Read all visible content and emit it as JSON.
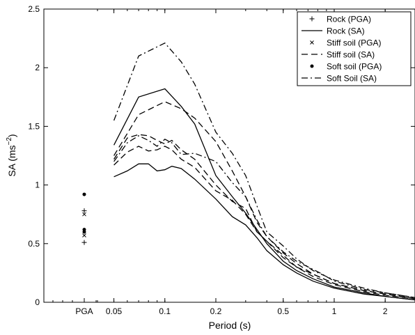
{
  "chart_data": {
    "type": "line",
    "title": "",
    "xlabel": "Period (s)",
    "ylabel_base": "SA (ms",
    "ylabel_exp": "−2",
    "ylabel_close": ")",
    "x_scale": "log",
    "xlim": [
      0.04,
      3
    ],
    "ylim": [
      0,
      2.5
    ],
    "grid": false,
    "legend_position": "top-right",
    "x_ticks": [
      {
        "value": 0.05,
        "label": "0.05"
      },
      {
        "value": 0.1,
        "label": "0.1"
      },
      {
        "value": 0.2,
        "label": "0.2"
      },
      {
        "value": 0.5,
        "label": "0.5"
      },
      {
        "value": 1,
        "label": "1"
      },
      {
        "value": 2,
        "label": "2"
      }
    ],
    "y_ticks": [
      {
        "value": 0,
        "label": "0"
      },
      {
        "value": 0.5,
        "label": "0.5"
      },
      {
        "value": 1,
        "label": "1"
      },
      {
        "value": 1.5,
        "label": "1.5"
      },
      {
        "value": 2,
        "label": "2"
      },
      {
        "value": 2.5,
        "label": "2.5"
      }
    ],
    "pga_label": "PGA",
    "pga_points": [
      {
        "series": "Rock (PGA)",
        "marker": "plus",
        "values": [
          0.51,
          0.78
        ]
      },
      {
        "series": "Stiff soil (PGA)",
        "marker": "x",
        "values": [
          0.57,
          0.75
        ]
      },
      {
        "series": "Soft soil (PGA)",
        "marker": "dot",
        "values": [
          0.6,
          0.62,
          0.92
        ]
      }
    ],
    "series": [
      {
        "name": "Rock (SA)",
        "dash": "",
        "points": [
          [
            0.05,
            1.07
          ],
          [
            0.06,
            1.12
          ],
          [
            0.07,
            1.18
          ],
          [
            0.08,
            1.18
          ],
          [
            0.09,
            1.12
          ],
          [
            0.1,
            1.13
          ],
          [
            0.11,
            1.16
          ],
          [
            0.125,
            1.14
          ],
          [
            0.15,
            1.05
          ],
          [
            0.2,
            0.88
          ],
          [
            0.25,
            0.73
          ],
          [
            0.3,
            0.66
          ],
          [
            0.35,
            0.55
          ],
          [
            0.4,
            0.44
          ],
          [
            0.5,
            0.32
          ],
          [
            0.6,
            0.25
          ],
          [
            0.75,
            0.18
          ],
          [
            1,
            0.12
          ],
          [
            1.5,
            0.07
          ],
          [
            2,
            0.05
          ],
          [
            3,
            0.02
          ]
        ]
      },
      {
        "name": "Rock (SA)",
        "dash": "",
        "points": [
          [
            0.05,
            1.34
          ],
          [
            0.07,
            1.75
          ],
          [
            0.1,
            1.82
          ],
          [
            0.125,
            1.67
          ],
          [
            0.15,
            1.52
          ],
          [
            0.2,
            1.08
          ],
          [
            0.25,
            0.9
          ],
          [
            0.3,
            0.76
          ],
          [
            0.35,
            0.62
          ],
          [
            0.4,
            0.5
          ],
          [
            0.5,
            0.35
          ],
          [
            0.6,
            0.27
          ],
          [
            0.75,
            0.2
          ],
          [
            1,
            0.13
          ],
          [
            1.5,
            0.08
          ],
          [
            2,
            0.05
          ],
          [
            3,
            0.02
          ]
        ]
      },
      {
        "name": "Stiff soil (SA)",
        "dash": "9 5",
        "points": [
          [
            0.05,
            1.17
          ],
          [
            0.06,
            1.28
          ],
          [
            0.07,
            1.33
          ],
          [
            0.08,
            1.29
          ],
          [
            0.09,
            1.3
          ],
          [
            0.1,
            1.33
          ],
          [
            0.11,
            1.3
          ],
          [
            0.125,
            1.22
          ],
          [
            0.15,
            1.15
          ],
          [
            0.2,
            0.95
          ],
          [
            0.25,
            0.87
          ],
          [
            0.3,
            0.75
          ],
          [
            0.35,
            0.6
          ],
          [
            0.4,
            0.52
          ],
          [
            0.5,
            0.4
          ],
          [
            0.6,
            0.3
          ],
          [
            0.75,
            0.22
          ],
          [
            1,
            0.15
          ],
          [
            1.5,
            0.09
          ],
          [
            2,
            0.06
          ],
          [
            3,
            0.03
          ]
        ]
      },
      {
        "name": "Stiff soil (SA)",
        "dash": "9 5",
        "points": [
          [
            0.05,
            1.22
          ],
          [
            0.06,
            1.4
          ],
          [
            0.07,
            1.43
          ],
          [
            0.08,
            1.42
          ],
          [
            0.09,
            1.38
          ],
          [
            0.1,
            1.35
          ],
          [
            0.11,
            1.38
          ],
          [
            0.125,
            1.3
          ],
          [
            0.15,
            1.22
          ],
          [
            0.2,
            1.0
          ],
          [
            0.25,
            0.86
          ],
          [
            0.3,
            0.8
          ],
          [
            0.35,
            0.6
          ],
          [
            0.4,
            0.52
          ],
          [
            0.5,
            0.38
          ],
          [
            0.6,
            0.3
          ],
          [
            0.75,
            0.24
          ],
          [
            1,
            0.16
          ],
          [
            1.5,
            0.1
          ],
          [
            2,
            0.07
          ],
          [
            3,
            0.03
          ]
        ]
      },
      {
        "name": "Stiff soil (SA)",
        "dash": "9 5",
        "points": [
          [
            0.05,
            1.25
          ],
          [
            0.07,
            1.6
          ],
          [
            0.1,
            1.71
          ],
          [
            0.125,
            1.65
          ],
          [
            0.15,
            1.57
          ],
          [
            0.2,
            1.37
          ],
          [
            0.25,
            1.12
          ],
          [
            0.3,
            0.9
          ],
          [
            0.35,
            0.68
          ],
          [
            0.4,
            0.56
          ],
          [
            0.5,
            0.42
          ],
          [
            0.6,
            0.33
          ],
          [
            0.75,
            0.24
          ],
          [
            1,
            0.16
          ],
          [
            1.5,
            0.1
          ],
          [
            2,
            0.07
          ],
          [
            3,
            0.03
          ]
        ]
      },
      {
        "name": "Soft Soil (SA)",
        "dash": "9 4 2 4",
        "points": [
          [
            0.05,
            1.2
          ],
          [
            0.06,
            1.36
          ],
          [
            0.07,
            1.42
          ],
          [
            0.08,
            1.38
          ],
          [
            0.09,
            1.33
          ],
          [
            0.1,
            1.39
          ],
          [
            0.11,
            1.36
          ],
          [
            0.125,
            1.26
          ],
          [
            0.15,
            1.27
          ],
          [
            0.2,
            1.2
          ],
          [
            0.25,
            1.02
          ],
          [
            0.3,
            0.9
          ],
          [
            0.35,
            0.7
          ],
          [
            0.4,
            0.56
          ],
          [
            0.5,
            0.43
          ],
          [
            0.6,
            0.35
          ],
          [
            0.75,
            0.28
          ],
          [
            0.85,
            0.24
          ],
          [
            1,
            0.18
          ],
          [
            1.5,
            0.11
          ],
          [
            2,
            0.08
          ],
          [
            3,
            0.04
          ]
        ]
      },
      {
        "name": "Soft Soil (SA)",
        "dash": "9 4 2 4",
        "points": [
          [
            0.05,
            1.55
          ],
          [
            0.07,
            2.1
          ],
          [
            0.1,
            2.21
          ],
          [
            0.125,
            2.05
          ],
          [
            0.15,
            1.86
          ],
          [
            0.2,
            1.45
          ],
          [
            0.25,
            1.27
          ],
          [
            0.3,
            1.08
          ],
          [
            0.35,
            0.82
          ],
          [
            0.4,
            0.6
          ],
          [
            0.5,
            0.48
          ],
          [
            0.6,
            0.37
          ],
          [
            0.75,
            0.27
          ],
          [
            1,
            0.19
          ],
          [
            1.5,
            0.12
          ],
          [
            2,
            0.08
          ],
          [
            3,
            0.04
          ]
        ]
      }
    ],
    "legend": [
      {
        "label": "Rock (PGA)",
        "kind": "marker",
        "marker": "plus"
      },
      {
        "label": "Rock (SA)",
        "kind": "line",
        "dash": ""
      },
      {
        "label": "Stiff soil (PGA)",
        "kind": "marker",
        "marker": "x"
      },
      {
        "label": "Stiff soil (SA)",
        "kind": "line",
        "dash": "9 5"
      },
      {
        "label": "Soft soil (PGA)",
        "kind": "marker",
        "marker": "dot"
      },
      {
        "label": "Soft Soil (SA)",
        "kind": "line",
        "dash": "9 4 2 4"
      }
    ]
  }
}
